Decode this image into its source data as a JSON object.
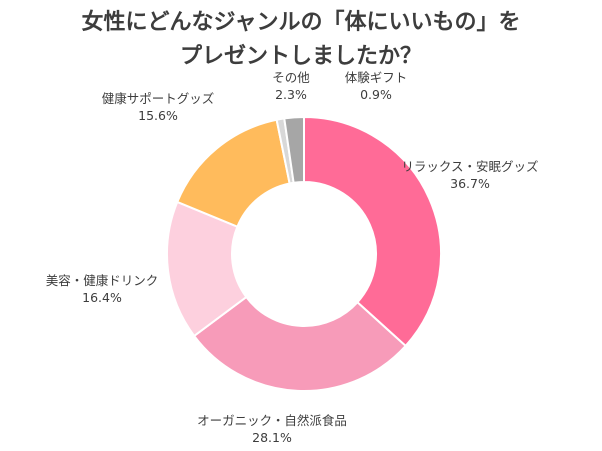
{
  "title_lines": [
    "女性にどんなジャンルの「体にいいもの」を",
    "プレゼントしましたか？"
  ],
  "chart_data": {
    "type": "pie",
    "donut": true,
    "title": "女性にどんなジャンルの「体にいいもの」をプレゼントしましたか？",
    "slices": [
      {
        "label": "リラックス・安眠グッズ",
        "value": 36.7,
        "display": "36.7%",
        "color": "#ff6b97"
      },
      {
        "label": "オーガニック・自然派食品",
        "value": 28.1,
        "display": "28.1%",
        "color": "#f79bb9"
      },
      {
        "label": "美容・健康ドリンク",
        "value": 16.4,
        "display": "16.4%",
        "color": "#fdd0de"
      },
      {
        "label": "健康サポートグッズ",
        "value": 15.6,
        "display": "15.6%",
        "color": "#ffbb5c"
      },
      {
        "label": "体験ギフト",
        "value": 0.9,
        "display": "0.9%",
        "color": "#d8d8d8"
      },
      {
        "label": "その他",
        "value": 2.3,
        "display": "2.3%",
        "color": "#a6a6a6"
      }
    ],
    "legend": "none",
    "labels": "outside"
  }
}
